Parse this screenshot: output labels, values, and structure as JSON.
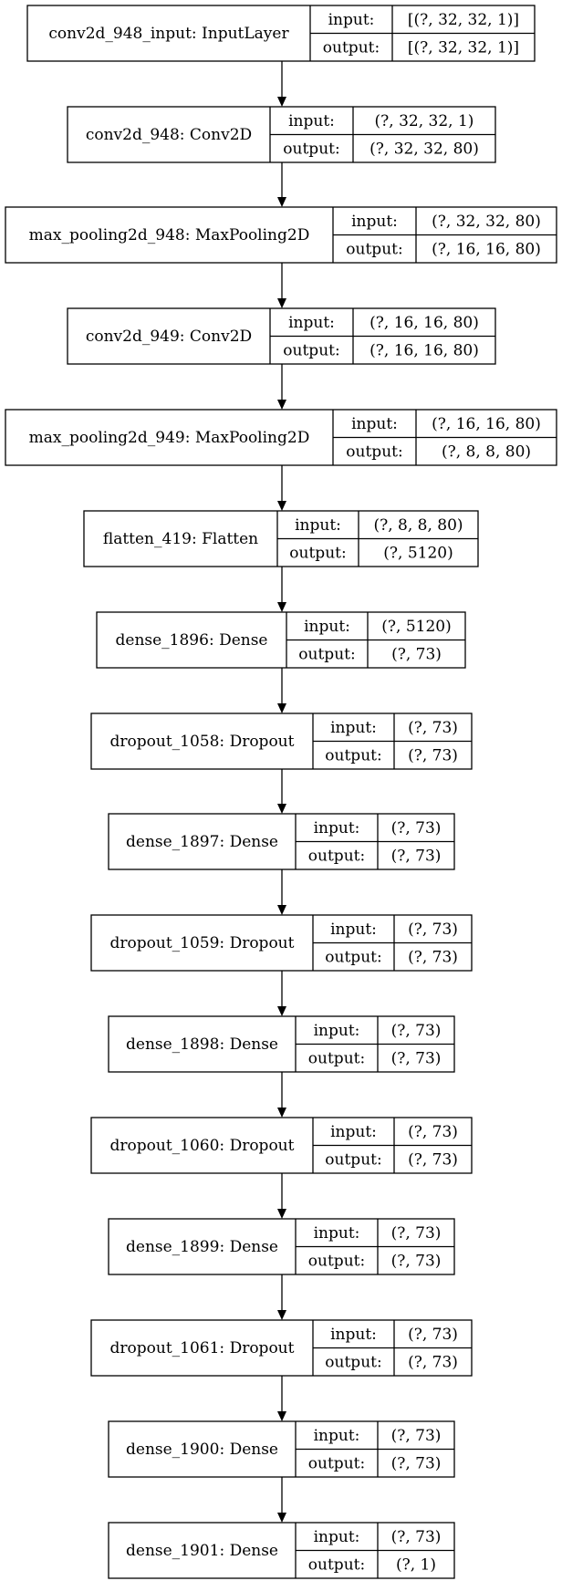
{
  "layers": [
    {
      "name": "conv2d_948_input: InputLayer",
      "input_label": "input:",
      "input": "[(?, 32, 32, 1)]",
      "output_label": "output:",
      "output": "[(?, 32, 32, 1)]"
    },
    {
      "name": "conv2d_948: Conv2D",
      "input_label": "input:",
      "input": "(?, 32, 32, 1)",
      "output_label": "output:",
      "output": "(?, 32, 32, 80)"
    },
    {
      "name": "max_pooling2d_948: MaxPooling2D",
      "input_label": "input:",
      "input": "(?, 32, 32, 80)",
      "output_label": "output:",
      "output": "(?, 16, 16, 80)"
    },
    {
      "name": "conv2d_949: Conv2D",
      "input_label": "input:",
      "input": "(?, 16, 16, 80)",
      "output_label": "output:",
      "output": "(?, 16, 16, 80)"
    },
    {
      "name": "max_pooling2d_949: MaxPooling2D",
      "input_label": "input:",
      "input": "(?, 16, 16, 80)",
      "output_label": "output:",
      "output": "(?, 8, 8, 80)"
    },
    {
      "name": "flatten_419: Flatten",
      "input_label": "input:",
      "input": "(?, 8, 8, 80)",
      "output_label": "output:",
      "output": "(?, 5120)"
    },
    {
      "name": "dense_1896: Dense",
      "input_label": "input:",
      "input": "(?, 5120)",
      "output_label": "output:",
      "output": "(?, 73)"
    },
    {
      "name": "dropout_1058: Dropout",
      "input_label": "input:",
      "input": "(?, 73)",
      "output_label": "output:",
      "output": "(?, 73)"
    },
    {
      "name": "dense_1897: Dense",
      "input_label": "input:",
      "input": "(?, 73)",
      "output_label": "output:",
      "output": "(?, 73)"
    },
    {
      "name": "dropout_1059: Dropout",
      "input_label": "input:",
      "input": "(?, 73)",
      "output_label": "output:",
      "output": "(?, 73)"
    },
    {
      "name": "dense_1898: Dense",
      "input_label": "input:",
      "input": "(?, 73)",
      "output_label": "output:",
      "output": "(?, 73)"
    },
    {
      "name": "dropout_1060: Dropout",
      "input_label": "input:",
      "input": "(?, 73)",
      "output_label": "output:",
      "output": "(?, 73)"
    },
    {
      "name": "dense_1899: Dense",
      "input_label": "input:",
      "input": "(?, 73)",
      "output_label": "output:",
      "output": "(?, 73)"
    },
    {
      "name": "dropout_1061: Dropout",
      "input_label": "input:",
      "input": "(?, 73)",
      "output_label": "output:",
      "output": "(?, 73)"
    },
    {
      "name": "dense_1900: Dense",
      "input_label": "input:",
      "input": "(?, 73)",
      "output_label": "output:",
      "output": "(?, 73)"
    },
    {
      "name": "dense_1901: Dense",
      "input_label": "input:",
      "input": "(?, 73)",
      "output_label": "output:",
      "output": "(?, 1)"
    }
  ]
}
